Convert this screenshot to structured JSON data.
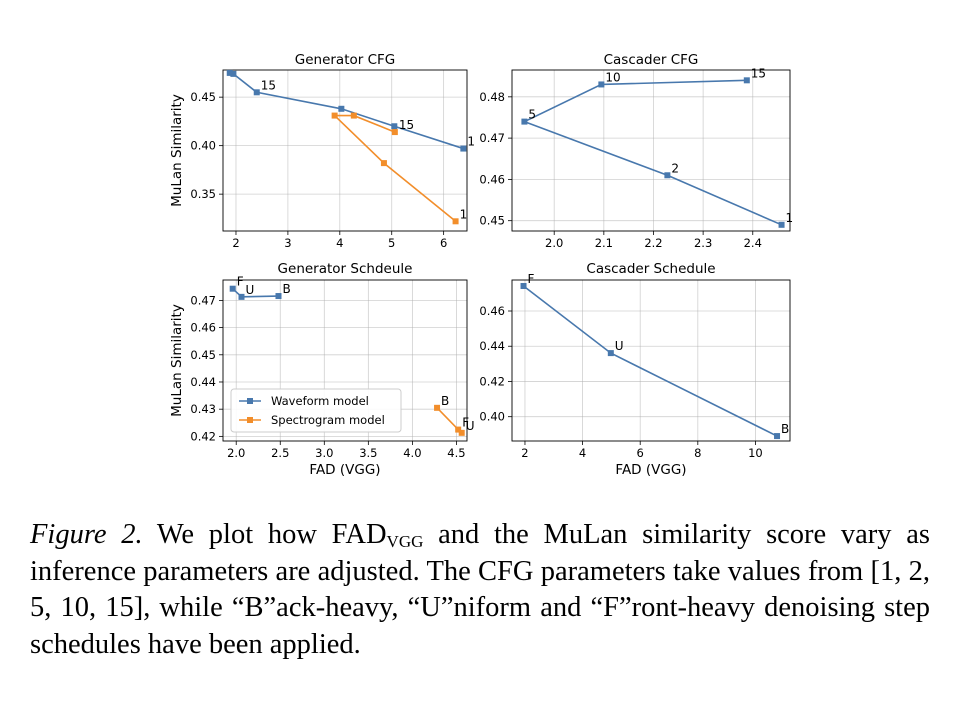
{
  "chart_data": [
    {
      "type": "line",
      "title": "Generator CFG",
      "xlabel": "",
      "ylabel": "MuLan Similarity",
      "xlim": [
        1.75,
        6.45
      ],
      "ylim": [
        0.312,
        0.478
      ],
      "xticks": [
        2,
        3,
        4,
        5,
        6
      ],
      "yticks": [
        0.35,
        0.4,
        0.45
      ],
      "xtick_labels": [
        "2",
        "3",
        "4",
        "5",
        "6"
      ],
      "ytick_labels": [
        "0.35",
        "0.40",
        "0.45"
      ],
      "grid": true,
      "series": [
        {
          "color": "#4878ad",
          "points": [
            {
              "x": 6.38,
              "y": 0.397,
              "label": "1"
            },
            {
              "x": 5.05,
              "y": 0.42,
              "label": ""
            },
            {
              "x": 4.03,
              "y": 0.438,
              "label": ""
            },
            {
              "x": 2.4,
              "y": 0.455,
              "label": "15"
            },
            {
              "x": 1.95,
              "y": 0.474,
              "label": ""
            },
            {
              "x": 1.88,
              "y": 0.475,
              "label": ""
            }
          ]
        },
        {
          "color": "#f28e2b",
          "points": [
            {
              "x": 6.23,
              "y": 0.322,
              "label": "1"
            },
            {
              "x": 4.85,
              "y": 0.382,
              "label": ""
            },
            {
              "x": 3.9,
              "y": 0.431,
              "label": ""
            },
            {
              "x": 4.27,
              "y": 0.431,
              "label": ""
            },
            {
              "x": 5.06,
              "y": 0.414,
              "label": "15"
            }
          ]
        }
      ]
    },
    {
      "type": "line",
      "title": "Cascader CFG",
      "xlabel": "",
      "ylabel": "",
      "xlim": [
        1.915,
        2.475
      ],
      "ylim": [
        0.4475,
        0.4865
      ],
      "xticks": [
        2.0,
        2.1,
        2.2,
        2.3,
        2.4
      ],
      "yticks": [
        0.45,
        0.46,
        0.47,
        0.48
      ],
      "xtick_labels": [
        "2.0",
        "2.1",
        "2.2",
        "2.3",
        "2.4"
      ],
      "ytick_labels": [
        "0.45",
        "0.46",
        "0.47",
        "0.48"
      ],
      "grid": true,
      "series": [
        {
          "color": "#4878ad",
          "points": [
            {
              "x": 2.458,
              "y": 0.449,
              "label": "1"
            },
            {
              "x": 2.228,
              "y": 0.461,
              "label": "2"
            },
            {
              "x": 1.94,
              "y": 0.474,
              "label": "5"
            },
            {
              "x": 2.095,
              "y": 0.483,
              "label": "10"
            },
            {
              "x": 2.388,
              "y": 0.484,
              "label": "15"
            }
          ]
        }
      ]
    },
    {
      "type": "line",
      "title": "Generator Schdeule",
      "xlabel": "FAD (VGG)",
      "ylabel": "MuLan Similarity",
      "xlim": [
        1.85,
        4.62
      ],
      "ylim": [
        0.4183,
        0.4775
      ],
      "xticks": [
        2.0,
        2.5,
        3.0,
        3.5,
        4.0,
        4.5
      ],
      "yticks": [
        0.42,
        0.43,
        0.44,
        0.45,
        0.46,
        0.47
      ],
      "xtick_labels": [
        "2.0",
        "2.5",
        "3.0",
        "3.5",
        "4.0",
        "4.5"
      ],
      "ytick_labels": [
        "0.42",
        "0.43",
        "0.44",
        "0.45",
        "0.46",
        "0.47"
      ],
      "grid": true,
      "legend": {
        "position": "lower-left",
        "entries": [
          "Waveform model",
          "Spectrogram model"
        ]
      },
      "series": [
        {
          "name": "Waveform model",
          "color": "#4878ad",
          "points": [
            {
              "x": 1.96,
              "y": 0.4743,
              "label": "F"
            },
            {
              "x": 2.06,
              "y": 0.4713,
              "label": "U"
            },
            {
              "x": 2.48,
              "y": 0.4716,
              "label": "B"
            }
          ]
        },
        {
          "name": "Spectrogram model",
          "color": "#f28e2b",
          "points": [
            {
              "x": 4.28,
              "y": 0.4305,
              "label": "B"
            },
            {
              "x": 4.52,
              "y": 0.4225,
              "label": "F"
            },
            {
              "x": 4.56,
              "y": 0.4213,
              "label": "U"
            }
          ]
        }
      ]
    },
    {
      "type": "line",
      "title": "Cascader Schedule",
      "xlabel": "FAD (VGG)",
      "ylabel": "",
      "xlim": [
        1.55,
        11.2
      ],
      "ylim": [
        0.3862,
        0.4776
      ],
      "xticks": [
        2,
        4,
        6,
        8,
        10
      ],
      "yticks": [
        0.4,
        0.42,
        0.44,
        0.46
      ],
      "xtick_labels": [
        "2",
        "4",
        "6",
        "8",
        "10"
      ],
      "ytick_labels": [
        "0.40",
        "0.42",
        "0.44",
        "0.46"
      ],
      "grid": true,
      "series": [
        {
          "color": "#4878ad",
          "points": [
            {
              "x": 1.95,
              "y": 0.4742,
              "label": "F"
            },
            {
              "x": 4.98,
              "y": 0.4361,
              "label": "U"
            },
            {
              "x": 10.75,
              "y": 0.389,
              "label": "B"
            }
          ]
        }
      ]
    }
  ],
  "caption": {
    "label": "Figure 2.",
    "part1": "We plot how FAD",
    "sub": "VGG",
    "part2": "and the MuLan similarity score vary as inference parameters are adjusted. The CFG parameters take values from [1, 2, 5, 10, 15], while “B”ack-heavy, “U”niform and “F”ront-heavy denoising step schedules have been applied."
  }
}
